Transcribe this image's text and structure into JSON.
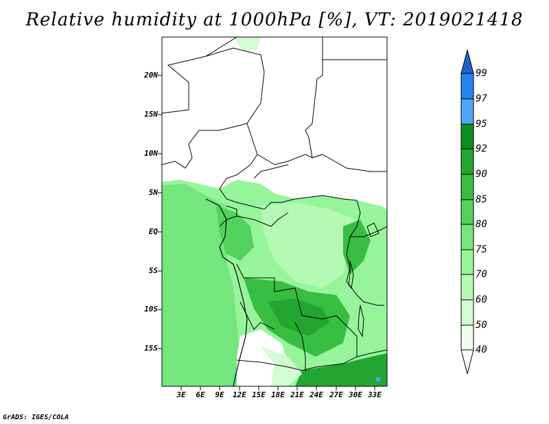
{
  "title": "Relative humidity at 1000hPa [%], VT: 2019021418",
  "footer": "GrADS: IGES/COLA",
  "map": {
    "lat_ticks": [
      "20N",
      "15N",
      "10N",
      "5N",
      "EQ",
      "5S",
      "10S",
      "15S"
    ],
    "lon_ticks": [
      "3E",
      "6E",
      "9E",
      "12E",
      "15E",
      "18E",
      "21E",
      "24E",
      "27E",
      "30E",
      "33E"
    ]
  },
  "colorbar": {
    "levels": [
      "99",
      "97",
      "95",
      "92",
      "90",
      "85",
      "80",
      "75",
      "70",
      "60",
      "50",
      "40"
    ],
    "colors": [
      "#1e64c8",
      "#2882f0",
      "#50a5f5",
      "#0f8c1e",
      "#23a532",
      "#37be41",
      "#52d25a",
      "#73e67d",
      "#96f59b",
      "#b4fab4",
      "#d2fcd2",
      "#edfeed",
      "#ffffff"
    ]
  }
}
